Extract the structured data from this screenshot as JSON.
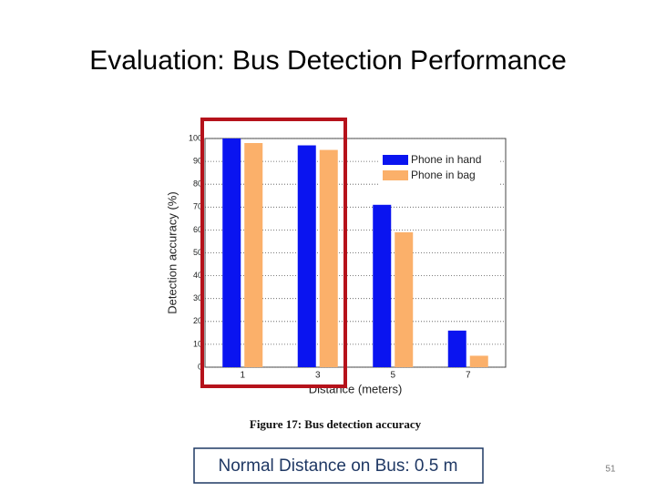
{
  "title": "Evaluation: Bus Detection Performance",
  "caption": "Figure 17:  Bus detection accuracy",
  "note": "Normal Distance on Bus: 0.5 m",
  "page_number": "51",
  "chart_data": {
    "type": "bar",
    "x_label": "Distance (meters)",
    "y_label": "Detection accuracy (%)",
    "categories": [
      "1",
      "3",
      "5",
      "7"
    ],
    "series": [
      {
        "name": "Phone in hand",
        "color": "#0a14f0",
        "values": [
          100,
          97,
          71,
          16
        ]
      },
      {
        "name": "Phone in bag",
        "color": "#fbb06a",
        "values": [
          98,
          95,
          59,
          5
        ]
      }
    ],
    "ylim": [
      0,
      100
    ],
    "yticks": [
      0,
      10,
      20,
      30,
      40,
      50,
      60,
      70,
      80,
      90,
      100
    ],
    "grid": true,
    "legend": "upper-right"
  }
}
